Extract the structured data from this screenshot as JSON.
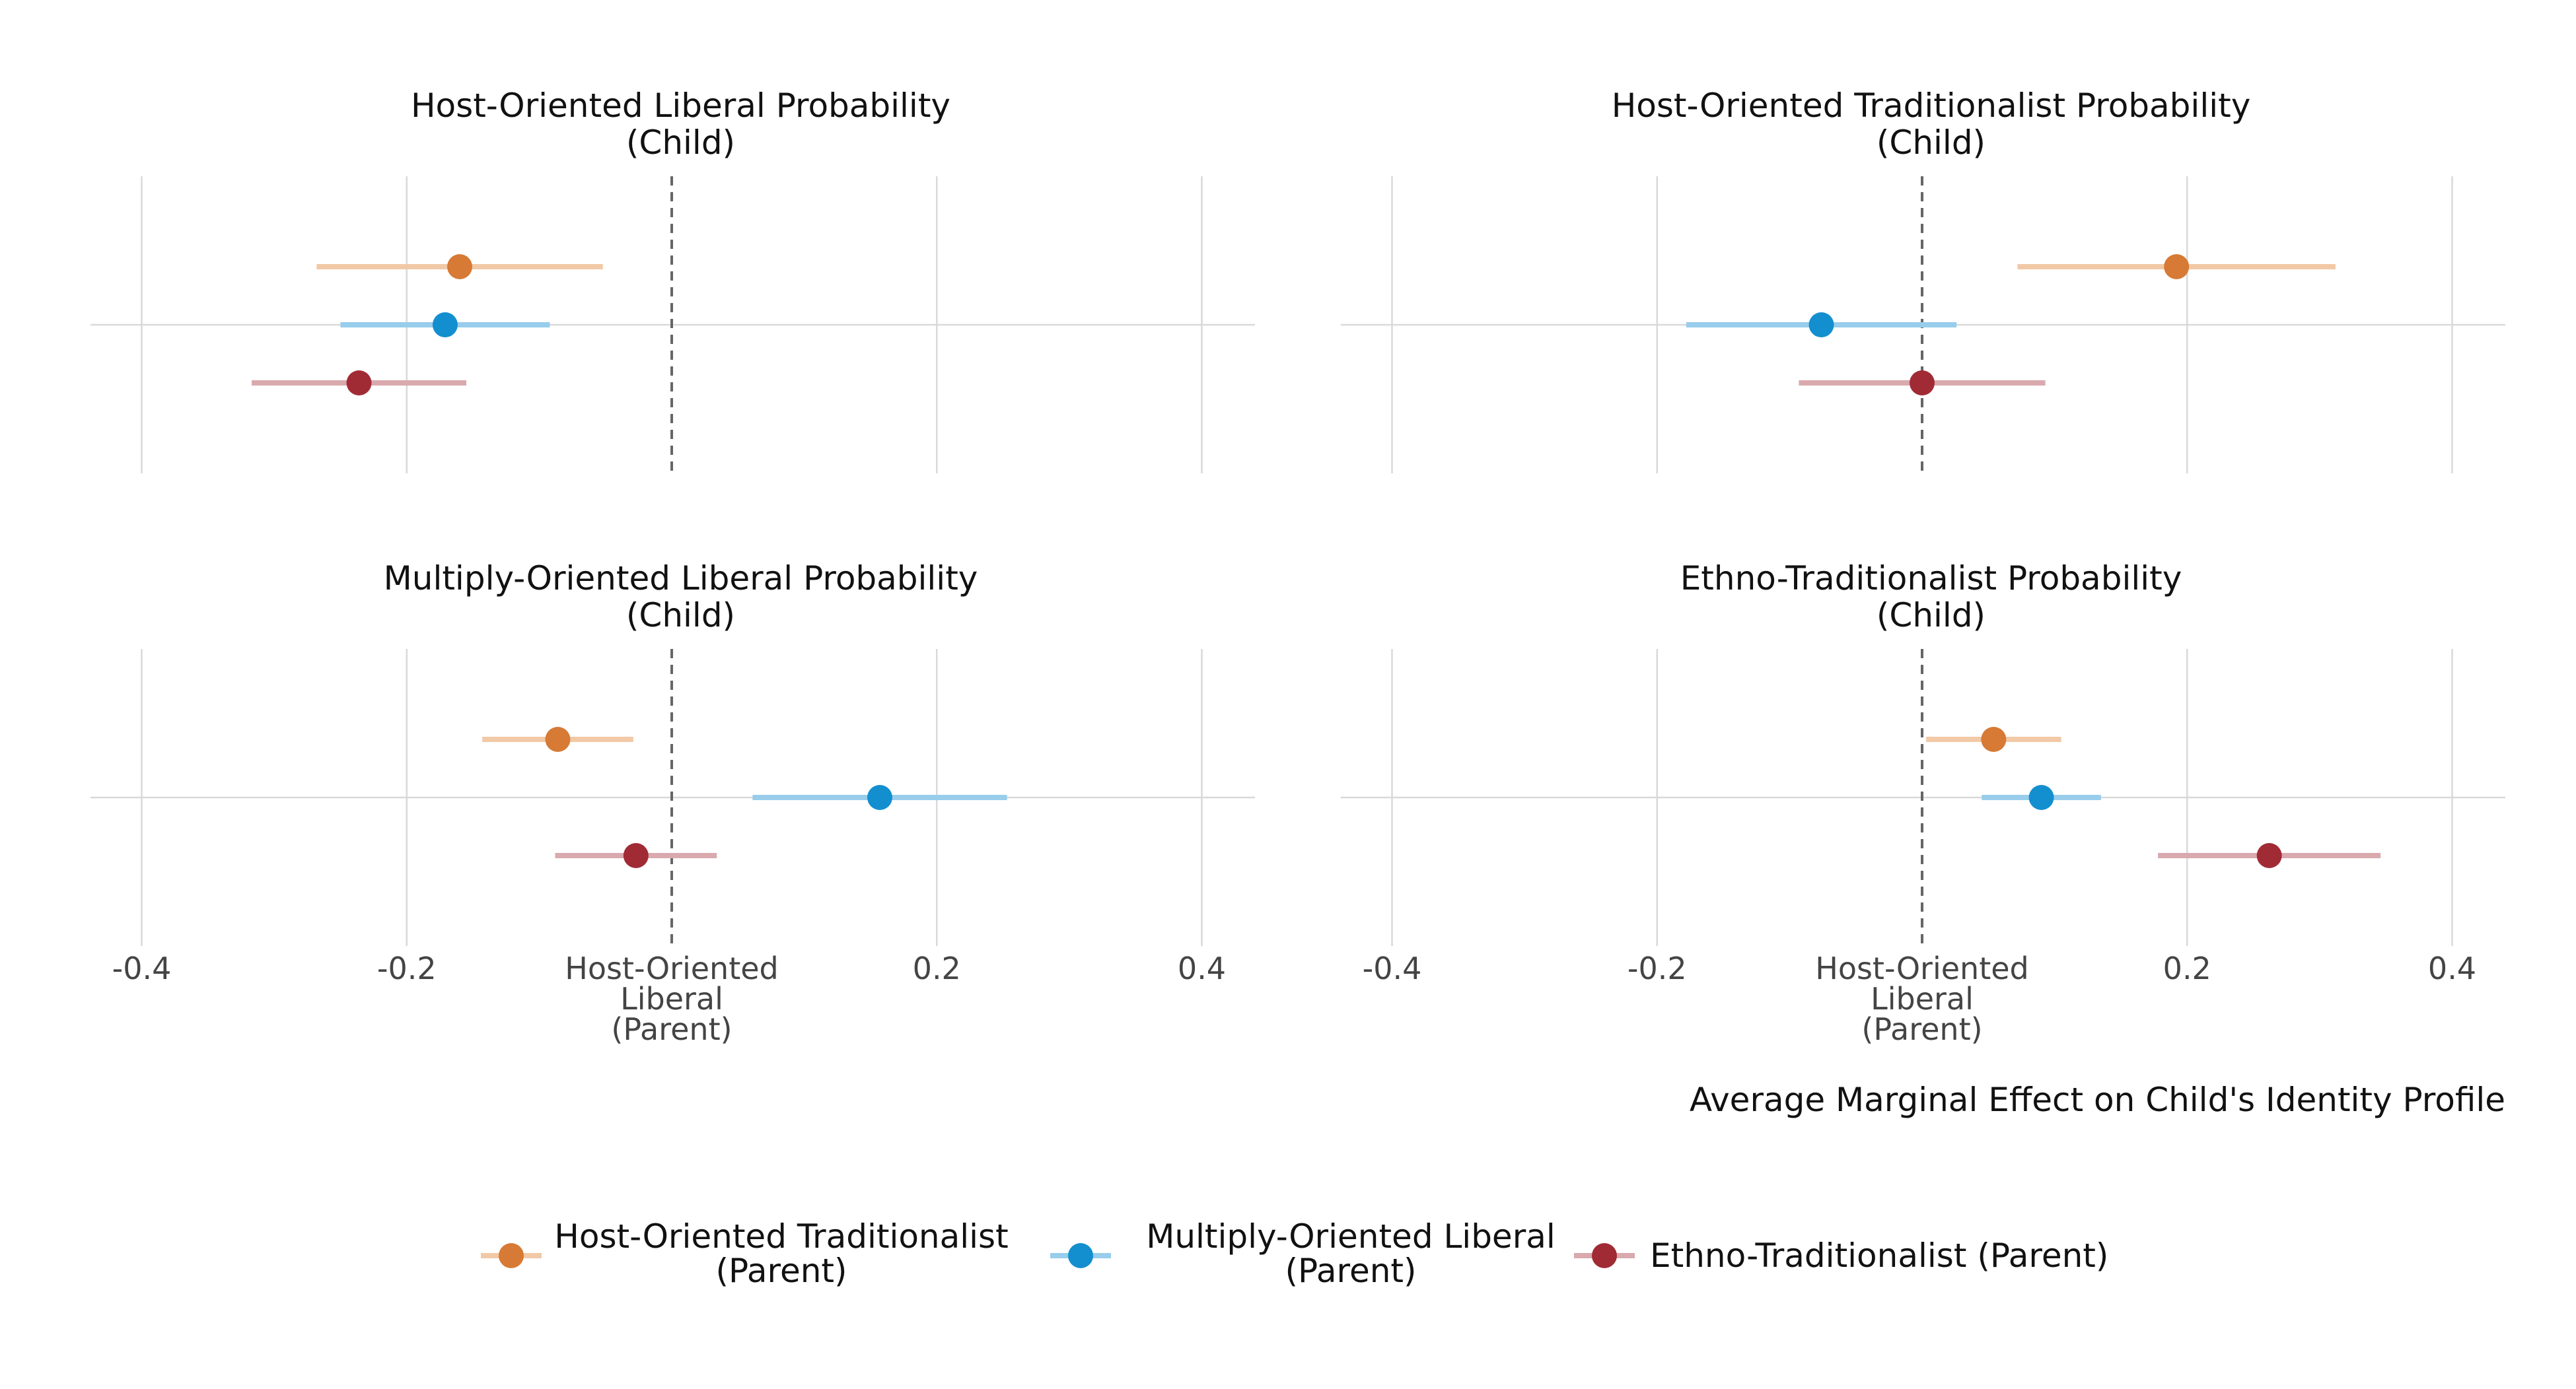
{
  "chart_data": {
    "type": "dot-interval",
    "xlabel": "Average Marginal Effect on Child's Identity Profile",
    "xlim": [
      -0.44,
      0.44
    ],
    "x_ticks": [
      {
        "value": -0.4,
        "label": "-0.4"
      },
      {
        "value": -0.2,
        "label": "-0.2"
      },
      {
        "value": 0.0,
        "label": "Host-Oriented\nLiberal\n(Parent)"
      },
      {
        "value": 0.2,
        "label": "0.2"
      },
      {
        "value": 0.4,
        "label": "0.4"
      }
    ],
    "reference_line": 0,
    "grid": true,
    "legend": {
      "position": "bottom",
      "entries": [
        {
          "label": "Host-Oriented Traditionalist\n(Parent)",
          "color": "#D67A35",
          "color_light": "#F2C9A6"
        },
        {
          "label": "Multiply-Oriented Liberal\n(Parent)",
          "color": "#138FCF",
          "color_light": "#98CDEB"
        },
        {
          "label": "Ethno-Traditionalist (Parent)",
          "color": "#A12B35",
          "color_light": "#D9A9AE"
        }
      ]
    },
    "panels": [
      {
        "title": "Host-Oriented Liberal Probability\n(Child)",
        "series": [
          {
            "estimate": -0.16,
            "lo": -0.268,
            "hi": -0.052
          },
          {
            "estimate": -0.171,
            "lo": -0.25,
            "hi": -0.092
          },
          {
            "estimate": -0.236,
            "lo": -0.317,
            "hi": -0.155
          }
        ]
      },
      {
        "title": "Host-Oriented Traditionalist Probability\n(Child)",
        "series": [
          {
            "estimate": 0.192,
            "lo": 0.072,
            "hi": 0.312
          },
          {
            "estimate": -0.076,
            "lo": -0.178,
            "hi": 0.026
          },
          {
            "estimate": 0.0,
            "lo": -0.093,
            "hi": 0.093
          }
        ]
      },
      {
        "title": "Multiply-Oriented Liberal Probability\n(Child)",
        "series": [
          {
            "estimate": -0.086,
            "lo": -0.143,
            "hi": -0.029
          },
          {
            "estimate": 0.157,
            "lo": 0.061,
            "hi": 0.253
          },
          {
            "estimate": -0.027,
            "lo": -0.088,
            "hi": 0.034
          }
        ]
      },
      {
        "title": "Ethno-Traditionalist Probability\n(Child)",
        "series": [
          {
            "estimate": 0.054,
            "lo": 0.003,
            "hi": 0.105
          },
          {
            "estimate": 0.09,
            "lo": 0.045,
            "hi": 0.135
          },
          {
            "estimate": 0.262,
            "lo": 0.178,
            "hi": 0.346
          }
        ]
      }
    ]
  }
}
